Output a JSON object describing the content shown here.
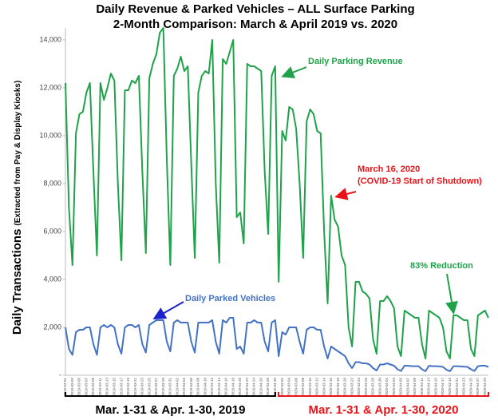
{
  "chart_data": {
    "type": "line",
    "title": "Daily Revenue & Parked Vehicles – ALL Surface Parking",
    "subtitle": "2-Month Comparison: March & April 2019 vs. 2020",
    "y_label": "Daily Transactions",
    "y_label_note": "(Extracted from Pay & Display Kiosks)",
    "ylim": [
      0,
      14500
    ],
    "yticks": [
      {
        "value": 0,
        "label": "-"
      },
      {
        "value": 2000,
        "label": "2,000"
      },
      {
        "value": 4000,
        "label": "4,000"
      },
      {
        "value": 6000,
        "label": "6,000"
      },
      {
        "value": 8000,
        "label": "8,000"
      },
      {
        "value": 10000,
        "label": "10,000"
      },
      {
        "value": 12000,
        "label": "12,000"
      },
      {
        "value": 14000,
        "label": "14,000"
      }
    ],
    "categories": [
      "2019-03-01",
      null,
      "2019-03-03",
      null,
      "2019-03-05",
      null,
      "2019-03-07",
      null,
      "2019-03-09",
      null,
      "2019-03-11",
      null,
      "2019-03-13",
      null,
      "2019-03-15",
      null,
      "2019-03-17",
      null,
      "2019-03-19",
      null,
      "2019-03-21",
      null,
      "2019-03-23",
      null,
      "2019-03-25",
      null,
      "2019-03-27",
      null,
      "2019-03-29",
      null,
      "2019-03-31",
      null,
      "2019-04-02",
      null,
      "2019-04-04",
      null,
      "2019-04-06",
      null,
      "2019-04-08",
      null,
      "2019-04-10",
      null,
      "2019-04-12",
      null,
      "2019-04-14",
      null,
      "2019-04-16",
      null,
      "2019-04-18",
      null,
      "2019-04-20",
      null,
      "2019-04-22",
      null,
      "2019-04-24",
      null,
      "2019-04-26",
      null,
      "2019-04-28",
      null,
      "2019-04-30",
      null,
      "2020-03-02",
      null,
      "2020-03-04",
      null,
      "2020-03-06",
      null,
      "2020-03-08",
      null,
      "2020-03-10",
      null,
      "2020-03-12",
      null,
      "2020-03-14",
      null,
      "2020-03-16",
      null,
      "2020-03-18",
      null,
      "2020-03-20",
      null,
      "2020-03-22",
      null,
      "2020-03-24",
      null,
      "2020-03-26",
      null,
      "2020-03-28",
      null,
      "2020-03-30",
      null,
      "2020-04-01",
      null,
      "2020-04-03",
      null,
      "2020-04-05",
      null,
      "2020-04-07",
      null,
      "2020-04-09",
      null,
      "2020-04-11",
      null,
      "2020-04-13",
      null,
      "2020-04-15",
      null,
      "2020-04-17",
      null,
      "2020-04-19",
      null,
      "2020-04-21",
      null,
      "2020-04-23",
      null,
      "2020-04-25",
      null,
      "2020-04-27",
      null,
      "2020-04-29",
      null
    ],
    "series": [
      {
        "name": "Daily Parking Revenue",
        "color": "#1fa24a",
        "values": [
          12200,
          7000,
          4600,
          10100,
          10900,
          11000,
          11800,
          12200,
          8500,
          5000,
          12200,
          11500,
          12000,
          12600,
          12300,
          8000,
          4800,
          11900,
          11900,
          12300,
          12200,
          12500,
          8500,
          5100,
          12400,
          13000,
          13400,
          14300,
          14500,
          9000,
          4600,
          12500,
          12800,
          13300,
          12700,
          12900,
          8800,
          4900,
          11800,
          12500,
          12700,
          12600,
          14000,
          8000,
          4700,
          13200,
          13000,
          13500,
          14000,
          6600,
          6800,
          5500,
          13000,
          12900,
          12900,
          12800,
          12700,
          8500,
          5900,
          12500,
          12900,
          3900,
          10200,
          9800,
          11200,
          11100,
          10300,
          8000,
          4900,
          10600,
          11100,
          10900,
          10200,
          10100,
          6000,
          3000,
          7500,
          6500,
          6200,
          5000,
          4600,
          2000,
          1200,
          3900,
          3900,
          3500,
          3400,
          3200,
          1500,
          900,
          3100,
          3100,
          3300,
          3100,
          2800,
          1200,
          800,
          2700,
          2600,
          2500,
          2400,
          2400,
          1300,
          700,
          2700,
          2600,
          2500,
          2400,
          2000,
          1000,
          700,
          2500,
          2500,
          2400,
          2300,
          2300,
          1100,
          800,
          2500,
          2600,
          2700,
          2400
        ]
      },
      {
        "name": "Daily Parked Vehicles",
        "color": "#4472c4",
        "values": [
          2000,
          1100,
          850,
          1800,
          1900,
          1900,
          2000,
          2000,
          1300,
          850,
          2000,
          2100,
          2000,
          2100,
          2000,
          1300,
          900,
          2000,
          2100,
          2100,
          2000,
          2100,
          1300,
          950,
          2100,
          2200,
          2300,
          2300,
          2300,
          1400,
          1000,
          2200,
          2300,
          2200,
          2200,
          2200,
          1400,
          950,
          2200,
          2200,
          2200,
          2200,
          2300,
          1400,
          900,
          2300,
          2200,
          2400,
          2400,
          1100,
          1200,
          900,
          2200,
          2200,
          2300,
          2200,
          2200,
          1400,
          1000,
          2200,
          2300,
          800,
          1800,
          1700,
          2000,
          2000,
          2000,
          1400,
          900,
          1900,
          2000,
          2000,
          1900,
          1900,
          1200,
          700,
          1200,
          1100,
          1000,
          900,
          800,
          500,
          300,
          550,
          550,
          500,
          500,
          450,
          300,
          200,
          450,
          450,
          500,
          450,
          400,
          250,
          180,
          400,
          400,
          380,
          380,
          380,
          250,
          170,
          400,
          380,
          380,
          370,
          350,
          230,
          170,
          380,
          380,
          370,
          360,
          350,
          250,
          180,
          380,
          400,
          400,
          350
        ]
      }
    ],
    "annotations": [
      {
        "text": "Daily Parking Revenue",
        "color": "#1fa24a"
      },
      {
        "text": "March 16, 2020",
        "color": "#e8141a"
      },
      {
        "text": "(COVID-19 Start of Shutdown)",
        "color": "#e8141a"
      },
      {
        "text": "83% Reduction",
        "color": "#1fa24a"
      },
      {
        "text": "Daily Parked Vehicles",
        "color": "#4472c4"
      }
    ],
    "groups": [
      {
        "label": "Mar. 1-31 & Apr. 1-30, 2019",
        "color": "#000000"
      },
      {
        "label": "Mar. 1-31 & Apr. 1-30, 2020",
        "color": "#e8141a"
      }
    ]
  }
}
